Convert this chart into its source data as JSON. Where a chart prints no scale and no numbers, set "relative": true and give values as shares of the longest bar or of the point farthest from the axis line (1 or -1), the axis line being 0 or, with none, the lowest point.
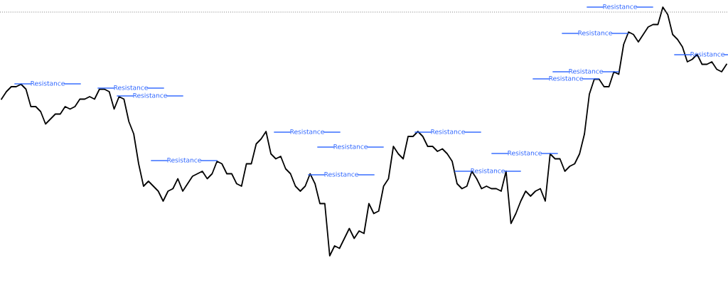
{
  "chart_data": {
    "type": "line",
    "relative": true,
    "categories": [
      null,
      null,
      null,
      null,
      null,
      null,
      null,
      null,
      null,
      null,
      null,
      null,
      null,
      null,
      null,
      null,
      null,
      null,
      null,
      null,
      null,
      null,
      null,
      null,
      null,
      null,
      null,
      null,
      null,
      null,
      null,
      null,
      null,
      null,
      null,
      null,
      null,
      null,
      null,
      null,
      null,
      null,
      null,
      null,
      null,
      null,
      null,
      null,
      null,
      null,
      null,
      null,
      null,
      null,
      null,
      null,
      null,
      null,
      null,
      null,
      null,
      null,
      null,
      null,
      null,
      null,
      null,
      null,
      null,
      null,
      null,
      null,
      null,
      null,
      null,
      null,
      null,
      null,
      null,
      null,
      null,
      null,
      null,
      null,
      null,
      null,
      null,
      null,
      null,
      null,
      null,
      null,
      null,
      null,
      null,
      null,
      null,
      null,
      null,
      null,
      null,
      null,
      null,
      null,
      null,
      null,
      null,
      null,
      null,
      null,
      null,
      null,
      null,
      null,
      null,
      null,
      null,
      null,
      null,
      null,
      null,
      null,
      null,
      null,
      null,
      null,
      null,
      null,
      null,
      null,
      null,
      null,
      null,
      null,
      null,
      null,
      null,
      null,
      null,
      null,
      null,
      null,
      null,
      null,
      null,
      null,
      null,
      null,
      null
    ],
    "series": [
      {
        "color": "#000000",
        "values": [
          0.63,
          0.66,
          0.68,
          0.68,
          0.69,
          0.67,
          0.6,
          0.6,
          0.58,
          0.53,
          0.55,
          0.57,
          0.57,
          0.6,
          0.59,
          0.6,
          0.63,
          0.63,
          0.64,
          0.63,
          0.67,
          0.67,
          0.66,
          0.59,
          0.64,
          0.63,
          0.54,
          0.49,
          0.37,
          0.28,
          0.3,
          0.28,
          0.26,
          0.22,
          0.26,
          0.27,
          0.31,
          0.26,
          0.29,
          0.32,
          0.33,
          0.34,
          0.31,
          0.33,
          0.38,
          0.37,
          0.33,
          0.33,
          0.29,
          0.28,
          0.37,
          0.37,
          0.45,
          0.47,
          0.5,
          0.41,
          0.39,
          0.4,
          0.35,
          0.33,
          0.28,
          0.26,
          0.28,
          0.33,
          0.29,
          0.21,
          0.21,
          0,
          0.04,
          0.03,
          0.07,
          0.11,
          0.07,
          0.1,
          0.09,
          0.21,
          0.17,
          0.18,
          0.28,
          0.31,
          0.44,
          0.41,
          0.39,
          0.48,
          0.48,
          0.5,
          0.48,
          0.44,
          0.44,
          0.42,
          0.43,
          0.41,
          0.38,
          0.29,
          0.27,
          0.28,
          0.34,
          0.31,
          0.27,
          0.28,
          0.27,
          0.27,
          0.26,
          0.34,
          0.13,
          0.17,
          0.22,
          0.26,
          0.24,
          0.26,
          0.27,
          0.22,
          0.41,
          0.39,
          0.39,
          0.34,
          0.36,
          0.37,
          0.41,
          0.49,
          0.65,
          0.71,
          0.71,
          0.68,
          0.68,
          0.74,
          0.73,
          0.85,
          0.9,
          0.89,
          0.86,
          0.89,
          0.92,
          0.93,
          0.93,
          1,
          0.97,
          0.89,
          0.87,
          0.84,
          0.78,
          0.79,
          0.81,
          0.77,
          0.77,
          0.78,
          0.75,
          0.74,
          0.77
        ]
      }
    ],
    "annotations": [
      "Resistance",
      "Resistance",
      "Resistance",
      "Resistance",
      "Resistance",
      "Resistance",
      "Resistance",
      "Resistance",
      "Resistance",
      "Resistance",
      "Resistance",
      "Resistance",
      "Resistance",
      "Resistance",
      "Resistance"
    ],
    "ref_lines": [
      {
        "axis": "y",
        "value": 0.98,
        "color": "#888888",
        "line_style": "dotted"
      }
    ],
    "marker": "none",
    "line_style": "solid"
  }
}
